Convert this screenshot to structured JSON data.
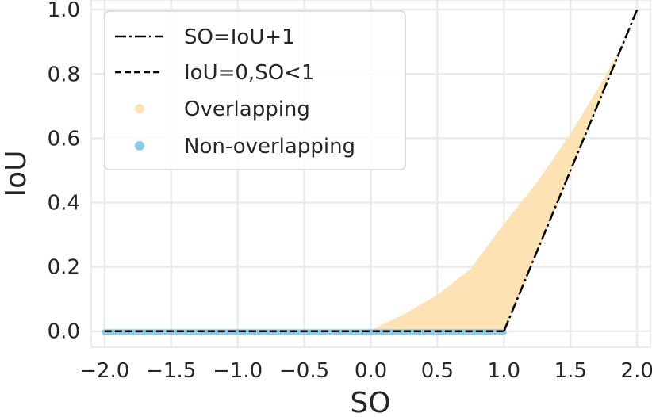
{
  "chart_data": {
    "type": "scatter",
    "xlabel": "SO",
    "ylabel": "IoU",
    "xlim": [
      -2.1,
      2.1
    ],
    "ylim": [
      -0.05,
      1.03
    ],
    "xticks": [
      -2.0,
      -1.5,
      -1.0,
      -0.5,
      0.0,
      0.5,
      1.0,
      1.5,
      2.0
    ],
    "yticks": [
      0.0,
      0.2,
      0.4,
      0.6,
      0.8,
      1.0
    ],
    "xtick_labels": [
      "−2.0",
      "−1.5",
      "−1.0",
      "−0.5",
      "0.0",
      "0.5",
      "1.0",
      "1.5",
      "2.0"
    ],
    "ytick_labels": [
      "0.0",
      "0.2",
      "0.4",
      "0.6",
      "0.8",
      "1.0"
    ],
    "grid": true,
    "legend_position": "top-left",
    "series": [
      {
        "name": "SO=IoU+1",
        "kind": "line",
        "style": "dashdot",
        "color": "#000000",
        "points": [
          [
            1.0,
            0.0
          ],
          [
            2.0,
            1.0
          ]
        ]
      },
      {
        "name": "IoU=0,SO<1",
        "kind": "line",
        "style": "dashed",
        "color": "#000000",
        "points": [
          [
            -2.0,
            0.0
          ],
          [
            1.0,
            0.0
          ]
        ]
      },
      {
        "name": "Overlapping",
        "kind": "scatter-region",
        "color": "#fde2b3",
        "upper_boundary": [
          [
            0.0,
            0.0
          ],
          [
            0.25,
            0.05
          ],
          [
            0.5,
            0.11
          ],
          [
            0.75,
            0.19
          ],
          [
            1.0,
            0.33
          ],
          [
            1.25,
            0.46
          ],
          [
            1.5,
            0.61
          ],
          [
            1.75,
            0.78
          ],
          [
            1.9,
            0.9
          ]
        ],
        "lower_boundary": [
          [
            0.0,
            0.0
          ],
          [
            1.0,
            0.0
          ],
          [
            1.9,
            0.9
          ]
        ]
      },
      {
        "name": "Non-overlapping",
        "kind": "scatter-band",
        "color": "#87cde8",
        "x_range": [
          -2.0,
          1.0
        ],
        "y": 0.0
      }
    ]
  }
}
